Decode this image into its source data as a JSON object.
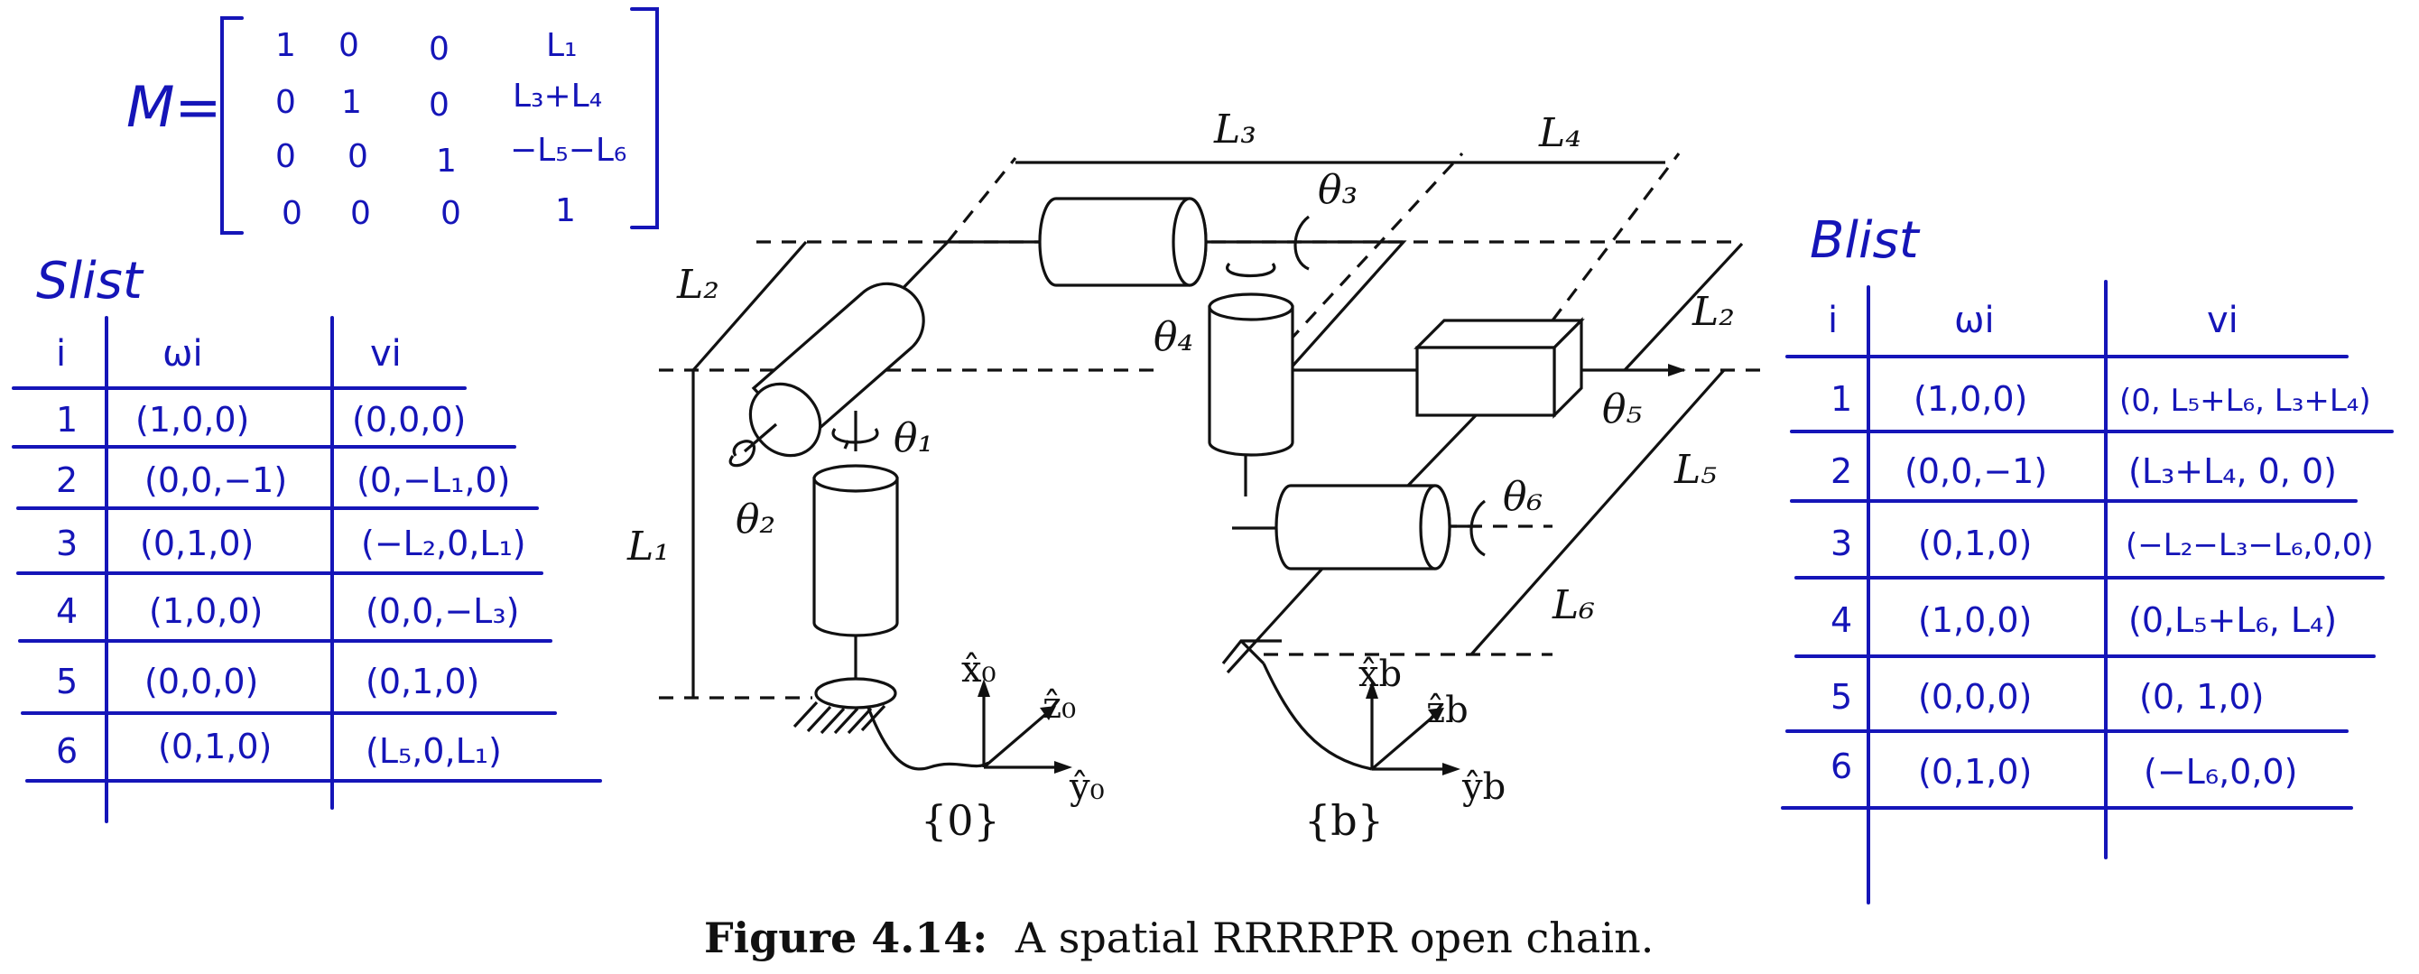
{
  "matrix": {
    "label": "M=",
    "rows": [
      [
        "1",
        "0",
        "0",
        "L₁"
      ],
      [
        "0",
        "1",
        "0",
        "L₃+L₄"
      ],
      [
        "0",
        "0",
        "1",
        "−L₅−L₆"
      ],
      [
        "0",
        "0",
        "0",
        "1"
      ]
    ]
  },
  "slist": {
    "title": "Slist",
    "headers": [
      "i",
      "ωi",
      "vi"
    ],
    "rows": [
      [
        "1",
        "(1,0,0)",
        "(0,0,0)"
      ],
      [
        "2",
        "(0,0,−1)",
        "(0,−L₁,0)"
      ],
      [
        "3",
        "(0,1,0)",
        "(−L₂,0,L₁)"
      ],
      [
        "4",
        "(1,0,0)",
        "(0,0,−L₃)"
      ],
      [
        "5",
        "(0,0,0)",
        "(0,1,0)"
      ],
      [
        "6",
        "(0,1,0)",
        "(L₅,0,L₁)"
      ]
    ]
  },
  "blist": {
    "title": "Blist",
    "headers": [
      "i",
      "ωi",
      "vi"
    ],
    "rows": [
      [
        "1",
        "(1,0,0)",
        "(0, L₅+L₆, L₃+L₄)"
      ],
      [
        "2",
        "(0,0,−1)",
        "(L₃+L₄, 0, 0)"
      ],
      [
        "3",
        "(0,1,0)",
        "(−L₂−L₃−L₆,0,0)"
      ],
      [
        "4",
        "(1,0,0)",
        "(0,L₅+L₆, L₄)"
      ],
      [
        "5",
        "(0,0,0)",
        "(0, 1,0)"
      ],
      [
        "6",
        "(0,1,0)",
        "(−L₆,0,0)"
      ]
    ]
  },
  "diagram": {
    "links": {
      "L1": "L₁",
      "L2a": "L₂",
      "L2b": "L₂",
      "L3": "L₃",
      "L4": "L₄",
      "L5": "L₅",
      "L6": "L₆"
    },
    "joints": {
      "t1": "θ₁",
      "t2": "θ₂",
      "t3": "θ₃",
      "t4": "θ₄",
      "t5": "θ₅",
      "t6": "θ₆"
    },
    "frame0": {
      "x": "x̂₀",
      "y": "ŷ₀",
      "z": "ẑ₀",
      "name": "{0}"
    },
    "frameb": {
      "x": "x̂b",
      "y": "ŷb",
      "z": "ẑb",
      "name": "{b}"
    }
  },
  "caption": {
    "bold": "Figure 4.14:",
    "text": "A spatial RRRRPR open chain."
  }
}
